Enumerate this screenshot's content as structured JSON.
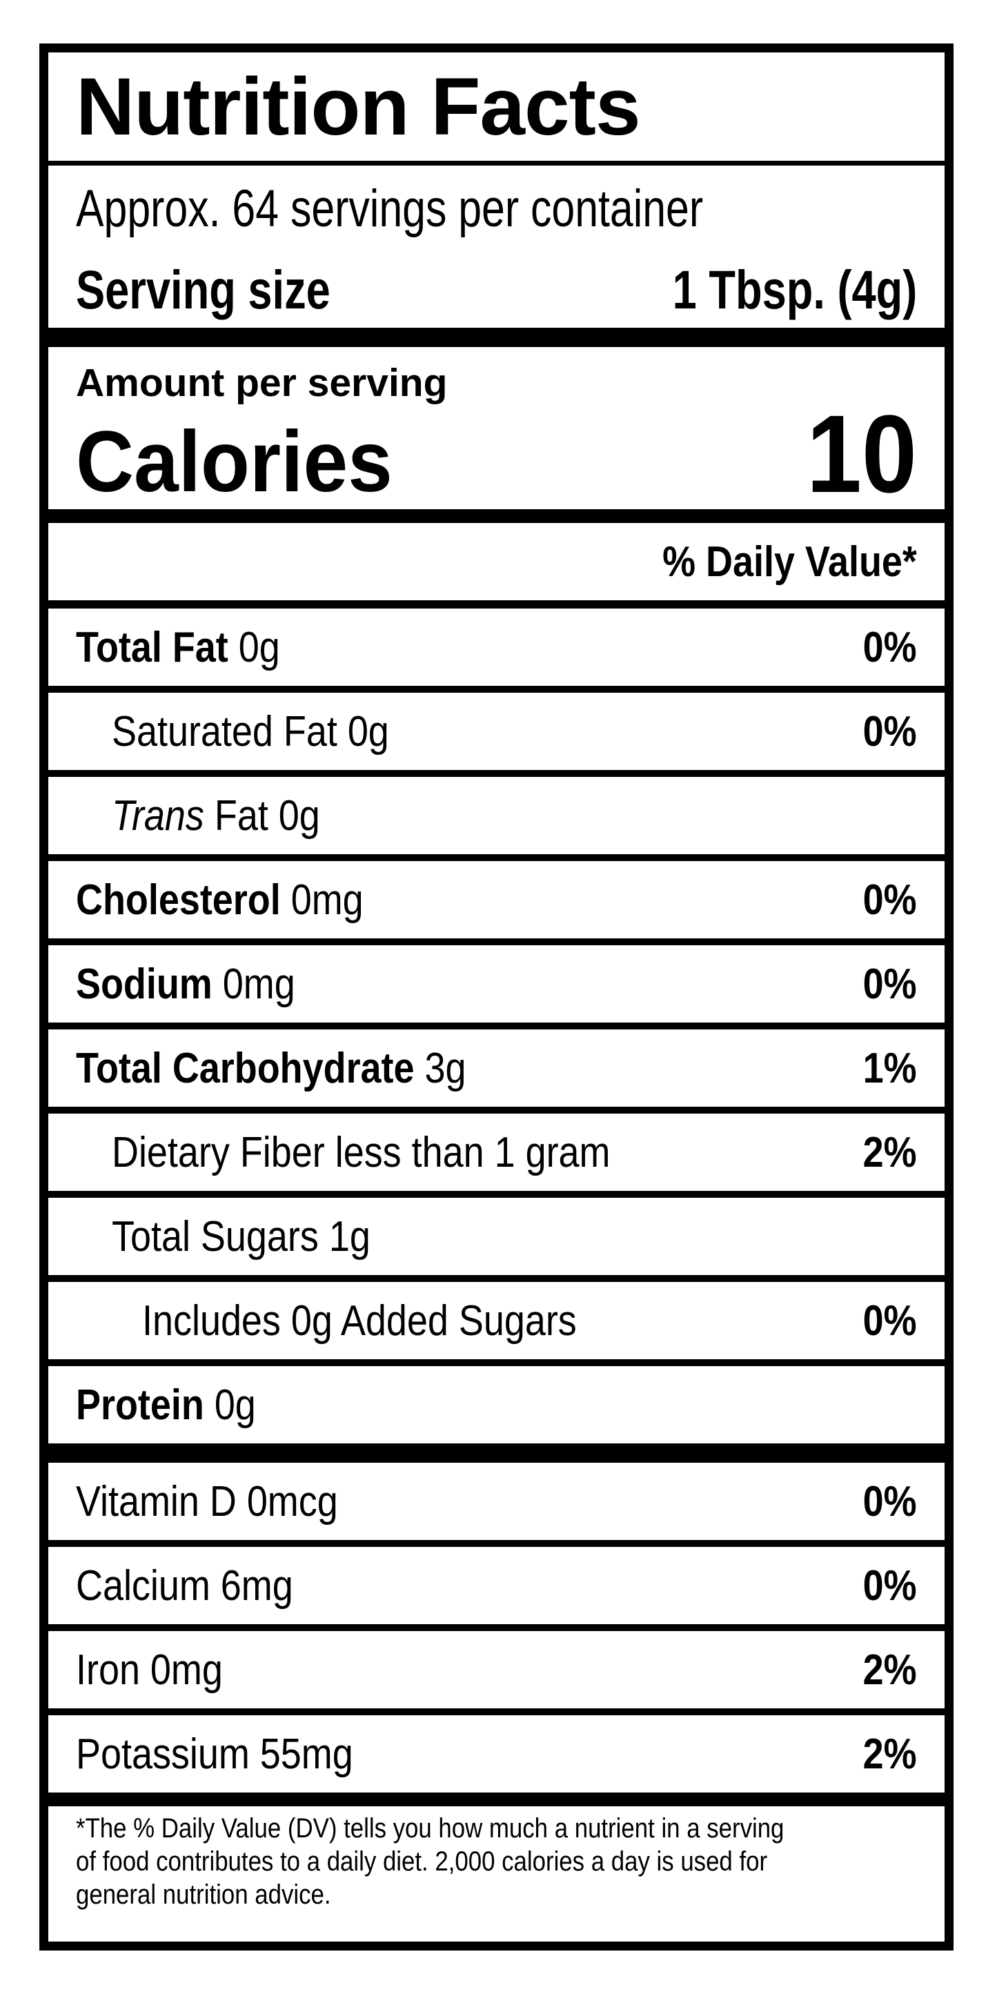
{
  "label": {
    "title": "Nutrition Facts",
    "servings_per_container": "Approx. 64 servings per container",
    "serving_size_label": "Serving size",
    "serving_size_value": "1 Tbsp. (4g)",
    "amount_per_serving": "Amount per serving",
    "calories_label": "Calories",
    "calories_value": "10",
    "daily_value_header": "% Daily Value*",
    "rows": [
      {
        "lead": "Total Fat",
        "rest": " 0g",
        "dv": "0%"
      },
      {
        "lead": "",
        "rest": "Saturated Fat 0g",
        "dv": "0%"
      },
      {
        "lead": "Trans",
        "rest": " Fat 0g",
        "dv": ""
      },
      {
        "lead": "Cholesterol",
        "rest": " 0mg",
        "dv": "0%"
      },
      {
        "lead": "Sodium",
        "rest": " 0mg",
        "dv": "0%"
      },
      {
        "lead": "Total Carbohydrate",
        "rest": " 3g",
        "dv": "1%"
      },
      {
        "lead": "",
        "rest": "Dietary Fiber less than 1 gram",
        "dv": "2%"
      },
      {
        "lead": "",
        "rest": "Total Sugars 1g",
        "dv": ""
      },
      {
        "lead": "",
        "rest": "Includes 0g Added Sugars",
        "dv": "0%"
      },
      {
        "lead": "Protein",
        "rest": " 0g",
        "dv": ""
      }
    ],
    "micronutrients": [
      {
        "name": "Vitamin D 0mcg",
        "dv": "0%"
      },
      {
        "name": "Calcium 6mg",
        "dv": "0%"
      },
      {
        "name": "Iron 0mg",
        "dv": "2%"
      },
      {
        "name": "Potassium 55mg",
        "dv": "2%"
      }
    ],
    "footnote_lines": [
      "*The % Daily Value (DV) tells you how much a nutrient in a serving",
      "of food contributes to a daily diet. 2,000 calories a day is used for",
      "general nutrition advice."
    ]
  },
  "colors": {
    "ink": "#000000",
    "paper": "#ffffff"
  }
}
